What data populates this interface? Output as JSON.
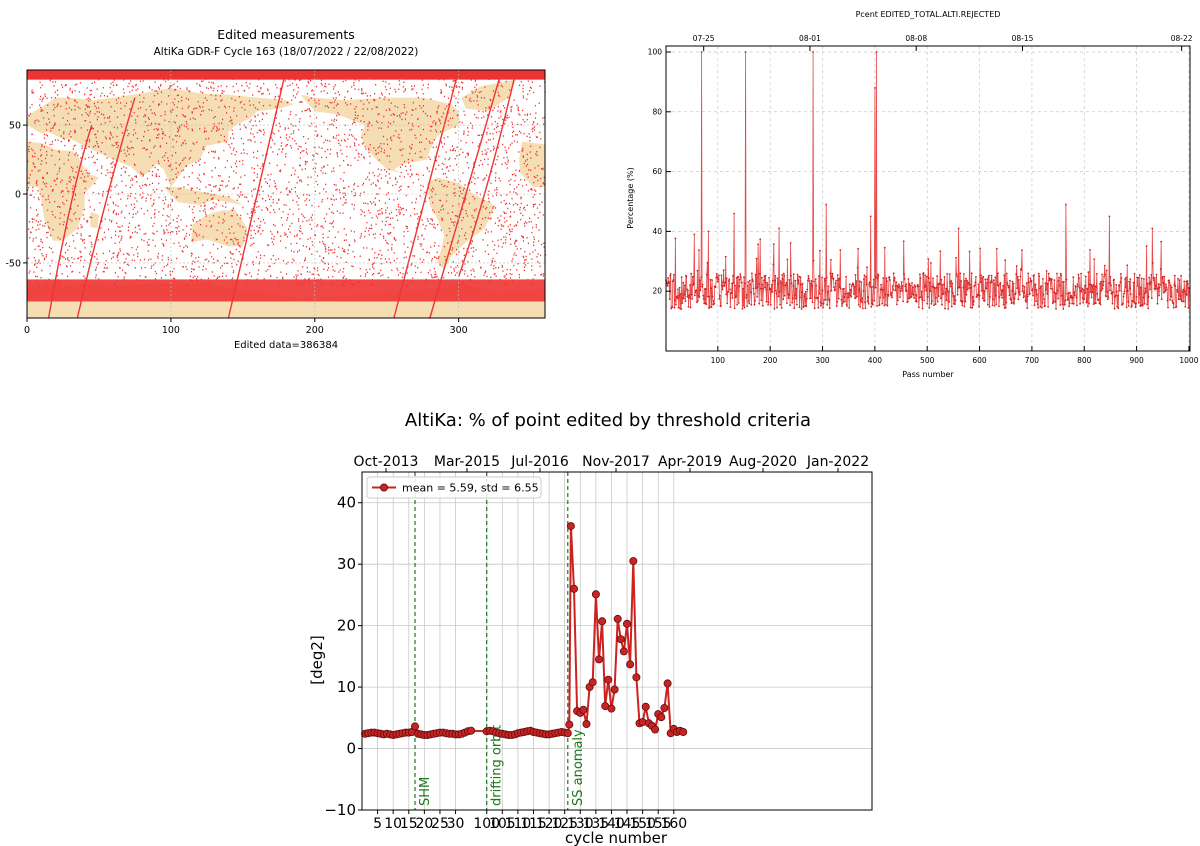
{
  "colors": {
    "ocean": "#ffffff",
    "land": "#f5deb3",
    "edit_points": "#ee3333",
    "ts_line": "#e84848",
    "series_line": "#cc2222",
    "marker_edge": "#5a1010",
    "event_line": "#1a7a1a",
    "grid": "#c8c8c8"
  },
  "map_panel": {
    "title": "Edited measurements",
    "subtitle": "AltiKa GDR-F Cycle 163 (18/07/2022 / 22/08/2022)",
    "footer": "Edited data=386384",
    "x_ticks": [
      "0",
      "100",
      "200",
      "300"
    ],
    "y_ticks": [
      "50",
      "0",
      "-50"
    ]
  },
  "chart_data": [
    {
      "type": "line",
      "title": "Pcent EDITED_TOTAL.ALTI.REJECTED",
      "xlabel": "Pass number",
      "ylabel": "Percentage (%)",
      "xlim": [
        1,
        1002
      ],
      "ylim": [
        0,
        102
      ],
      "x_ticks": [
        "100",
        "200",
        "300",
        "400",
        "500",
        "600",
        "700",
        "800",
        "900",
        "1000"
      ],
      "y_ticks": [
        "20",
        "40",
        "60",
        "80",
        "100"
      ],
      "top_ticks": [
        "07-25",
        "08-01",
        "08-08",
        "08-15",
        "08-22"
      ],
      "top_tick_pass": [
        73,
        276,
        479,
        682,
        986
      ],
      "baseline": 20,
      "spikes": [
        {
          "pass": 69,
          "value": 100
        },
        {
          "pass": 153,
          "value": 100
        },
        {
          "pass": 282,
          "value": 100
        },
        {
          "pass": 400,
          "value": 88
        },
        {
          "pass": 403,
          "value": 100
        },
        {
          "pass": 131,
          "value": 46
        },
        {
          "pass": 217,
          "value": 41
        },
        {
          "pass": 307,
          "value": 49
        },
        {
          "pass": 392,
          "value": 45
        },
        {
          "pass": 765,
          "value": 49
        },
        {
          "pass": 848,
          "value": 45
        },
        {
          "pass": 55,
          "value": 39
        },
        {
          "pass": 82,
          "value": 40
        },
        {
          "pass": 560,
          "value": 41
        },
        {
          "pass": 930,
          "value": 41
        }
      ]
    },
    {
      "type": "line",
      "title": "AltiKa: % of point edited by threshold criteria",
      "xlabel": "cycle number",
      "ylabel": "[deg2]",
      "ylim": [
        -10,
        45
      ],
      "xlim": [
        0,
        164
      ],
      "y_ticks": [
        "40",
        "30",
        "20",
        "10",
        "0",
        "−10"
      ],
      "x_ticks": [
        "5",
        "10",
        "15",
        "20",
        "25",
        "30",
        "100",
        "105",
        "110",
        "115",
        "120",
        "125",
        "130",
        "135",
        "140",
        "145",
        "150",
        "155",
        "160"
      ],
      "top_ticks": [
        "Oct-2013",
        "Mar-2015",
        "Jul-2016",
        "Nov-2017",
        "Apr-2019",
        "Aug-2020",
        "Jan-2022"
      ],
      "legend": "mean = 5.59, std = 6.55",
      "events": [
        {
          "label": "SHM",
          "cycle": 17
        },
        {
          "label": "drifting orbit",
          "cycle": 100
        },
        {
          "label": "SS anomaly",
          "cycle": 126
        }
      ],
      "series": [
        {
          "name": "mean = 5.59, std = 6.55",
          "points": [
            [
              1,
              2.4
            ],
            [
              2,
              2.5
            ],
            [
              3,
              2.6
            ],
            [
              4,
              2.6
            ],
            [
              5,
              2.5
            ],
            [
              6,
              2.4
            ],
            [
              7,
              2.3
            ],
            [
              8,
              2.4
            ],
            [
              9,
              2.3
            ],
            [
              10,
              2.2
            ],
            [
              11,
              2.3
            ],
            [
              12,
              2.4
            ],
            [
              13,
              2.5
            ],
            [
              14,
              2.6
            ],
            [
              15,
              2.6
            ],
            [
              16,
              2.7
            ],
            [
              17,
              3.6
            ],
            [
              18,
              2.4
            ],
            [
              19,
              2.3
            ],
            [
              20,
              2.2
            ],
            [
              21,
              2.2
            ],
            [
              22,
              2.3
            ],
            [
              23,
              2.4
            ],
            [
              24,
              2.5
            ],
            [
              25,
              2.6
            ],
            [
              26,
              2.6
            ],
            [
              27,
              2.5
            ],
            [
              28,
              2.4
            ],
            [
              29,
              2.4
            ],
            [
              30,
              2.3
            ],
            [
              31,
              2.3
            ],
            [
              32,
              2.4
            ],
            [
              33,
              2.6
            ],
            [
              34,
              2.8
            ],
            [
              35,
              2.9
            ],
            [
              100,
              2.8
            ],
            [
              101,
              2.9
            ],
            [
              102,
              2.8
            ],
            [
              103,
              2.6
            ],
            [
              104,
              2.5
            ],
            [
              105,
              2.4
            ],
            [
              106,
              2.3
            ],
            [
              107,
              2.2
            ],
            [
              108,
              2.2
            ],
            [
              109,
              2.3
            ],
            [
              110,
              2.5
            ],
            [
              111,
              2.6
            ],
            [
              112,
              2.7
            ],
            [
              113,
              2.8
            ],
            [
              114,
              2.9
            ],
            [
              115,
              2.7
            ],
            [
              116,
              2.6
            ],
            [
              117,
              2.5
            ],
            [
              118,
              2.4
            ],
            [
              119,
              2.3
            ],
            [
              120,
              2.3
            ],
            [
              121,
              2.4
            ],
            [
              122,
              2.5
            ],
            [
              123,
              2.6
            ],
            [
              124,
              2.7
            ],
            [
              125,
              2.6
            ],
            [
              126,
              2.5
            ],
            [
              126.5,
              3.9
            ],
            [
              127,
              36.2
            ],
            [
              128,
              26.0
            ],
            [
              129,
              6.1
            ],
            [
              130,
              5.8
            ],
            [
              131,
              6.3
            ],
            [
              132,
              4.0
            ],
            [
              133,
              10.0
            ],
            [
              134,
              10.8
            ],
            [
              135,
              25.1
            ],
            [
              136,
              14.5
            ],
            [
              137,
              20.7
            ],
            [
              138,
              6.9
            ],
            [
              139,
              11.2
            ],
            [
              140,
              6.5
            ],
            [
              141,
              9.6
            ],
            [
              142,
              21.1
            ],
            [
              143,
              17.8
            ],
            [
              144,
              15.8
            ],
            [
              145,
              20.3
            ],
            [
              146,
              13.7
            ],
            [
              147,
              30.5
            ],
            [
              148,
              11.6
            ],
            [
              149,
              4.1
            ],
            [
              150,
              4.3
            ],
            [
              151,
              6.8
            ],
            [
              152,
              4.1
            ],
            [
              153,
              3.7
            ],
            [
              154,
              3.1
            ],
            [
              155,
              5.6
            ],
            [
              156,
              5.1
            ],
            [
              157,
              6.6
            ],
            [
              158,
              10.6
            ],
            [
              159,
              2.5
            ],
            [
              160,
              3.2
            ],
            [
              161,
              2.7
            ],
            [
              162,
              2.9
            ],
            [
              163,
              2.7
            ]
          ]
        }
      ]
    }
  ]
}
